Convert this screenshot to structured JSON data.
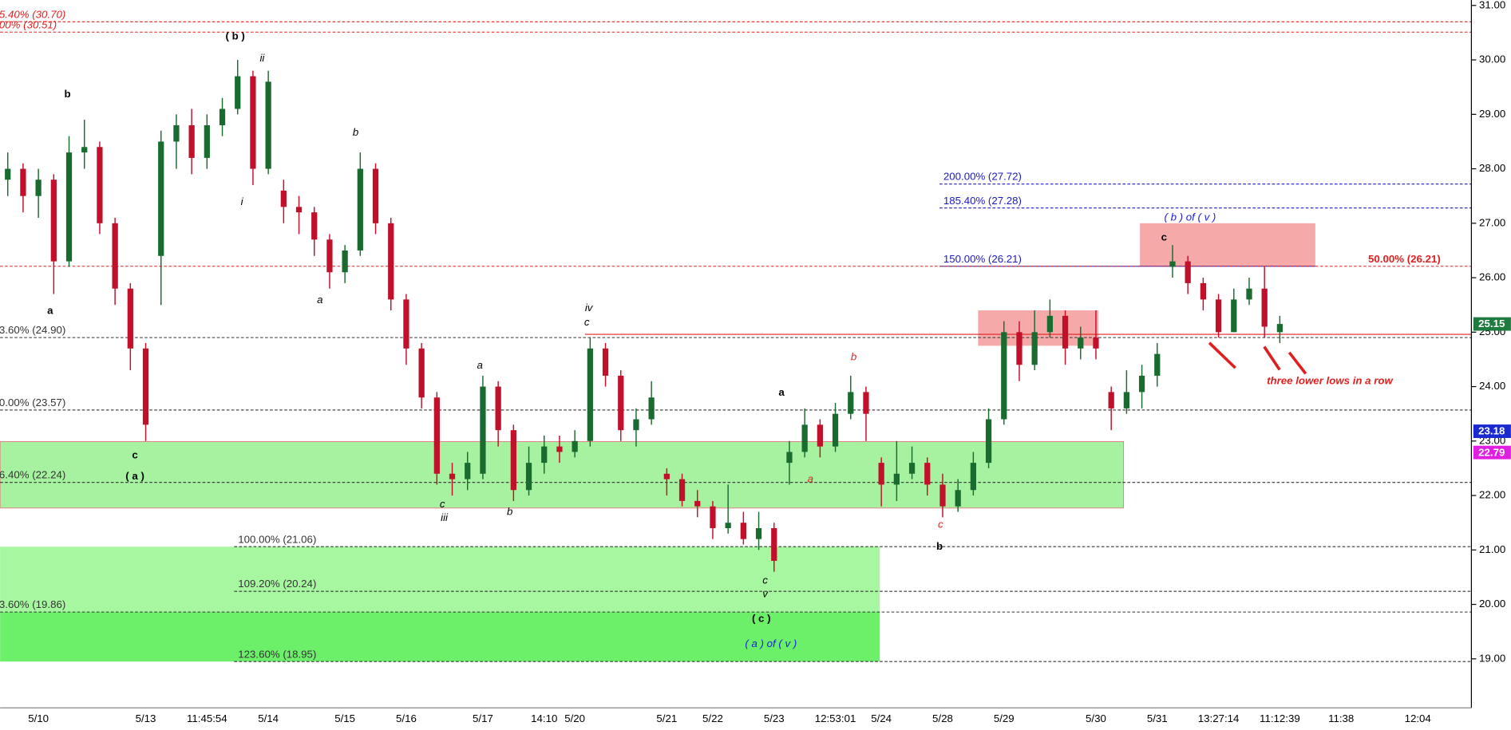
{
  "chart_data": {
    "type": "candlestick",
    "categories": [
      null,
      null,
      "5/10",
      null,
      null,
      null,
      null,
      null,
      null,
      "5/13",
      null,
      null,
      null,
      "11:45:54",
      null,
      null,
      null,
      "5/14",
      null,
      null,
      null,
      null,
      "5/15",
      null,
      null,
      null,
      "5/16",
      null,
      null,
      null,
      null,
      "5/17",
      null,
      null,
      null,
      "14:10",
      null,
      "5/20",
      null,
      null,
      null,
      null,
      null,
      "5/21",
      null,
      null,
      "5/22",
      null,
      null,
      null,
      "5/23",
      null,
      null,
      null,
      "12:53:01",
      null,
      null,
      "5/24",
      null,
      null,
      null,
      "5/28",
      null,
      null,
      null,
      "5/29",
      null,
      null,
      null,
      null,
      null,
      "5/30",
      null,
      null,
      null,
      "5/31",
      null,
      null,
      null,
      "13:27:14",
      null,
      null,
      null,
      "11:12:39",
      null,
      null,
      null,
      "11:38",
      null,
      null,
      null,
      null,
      "12:04",
      null,
      null,
      null
    ],
    "candles": [
      [
        27.8,
        28.3,
        27.5,
        28.0
      ],
      [
        28.0,
        28.1,
        27.2,
        27.5
      ],
      [
        27.5,
        28.0,
        27.1,
        27.8
      ],
      [
        27.8,
        27.9,
        25.7,
        26.3
      ],
      [
        26.3,
        28.6,
        26.2,
        28.3
      ],
      [
        28.3,
        28.9,
        28.0,
        28.4
      ],
      [
        28.4,
        28.5,
        26.8,
        27.0
      ],
      [
        27.0,
        27.1,
        25.5,
        25.8
      ],
      [
        25.8,
        25.9,
        24.3,
        24.7
      ],
      [
        24.7,
        24.8,
        23.0,
        23.3
      ],
      [
        26.4,
        28.7,
        25.5,
        28.5
      ],
      [
        28.5,
        29.0,
        28.0,
        28.8
      ],
      [
        28.8,
        29.1,
        27.9,
        28.2
      ],
      [
        28.2,
        29.0,
        28.0,
        28.8
      ],
      [
        28.8,
        29.3,
        28.6,
        29.1
      ],
      [
        29.1,
        30.0,
        29.0,
        29.7
      ],
      [
        29.7,
        29.8,
        27.7,
        28.0
      ],
      [
        28.0,
        29.8,
        27.9,
        29.6
      ],
      [
        27.6,
        27.8,
        27.0,
        27.3
      ],
      [
        27.3,
        27.5,
        26.8,
        27.2
      ],
      [
        27.2,
        27.3,
        26.4,
        26.7
      ],
      [
        26.7,
        26.8,
        25.8,
        26.1
      ],
      [
        26.1,
        26.6,
        25.9,
        26.5
      ],
      [
        26.5,
        28.3,
        26.4,
        28.0
      ],
      [
        28.0,
        28.1,
        26.8,
        27.0
      ],
      [
        27.0,
        27.1,
        25.4,
        25.6
      ],
      [
        25.6,
        25.7,
        24.4,
        24.7
      ],
      [
        24.7,
        24.8,
        23.6,
        23.8
      ],
      [
        23.8,
        23.9,
        22.2,
        22.4
      ],
      [
        22.4,
        22.6,
        22.0,
        22.3
      ],
      [
        22.3,
        22.8,
        22.1,
        22.6
      ],
      [
        22.4,
        24.2,
        22.3,
        24.0
      ],
      [
        24.0,
        24.1,
        22.9,
        23.2
      ],
      [
        23.2,
        23.3,
        21.9,
        22.1
      ],
      [
        22.1,
        22.9,
        22.0,
        22.6
      ],
      [
        22.6,
        23.1,
        22.4,
        22.9
      ],
      [
        22.9,
        23.1,
        22.6,
        22.8
      ],
      [
        22.8,
        23.2,
        22.7,
        23.0
      ],
      [
        23.0,
        24.9,
        22.9,
        24.7
      ],
      [
        24.7,
        24.8,
        24.0,
        24.2
      ],
      [
        24.2,
        24.3,
        23.0,
        23.2
      ],
      [
        23.2,
        23.6,
        22.9,
        23.4
      ],
      [
        23.4,
        24.1,
        23.3,
        23.8
      ],
      [
        22.4,
        22.5,
        22.0,
        22.3
      ],
      [
        22.3,
        22.4,
        21.8,
        21.9
      ],
      [
        21.9,
        22.1,
        21.6,
        21.8
      ],
      [
        21.8,
        21.9,
        21.2,
        21.4
      ],
      [
        21.4,
        22.2,
        21.3,
        21.5
      ],
      [
        21.5,
        21.7,
        21.1,
        21.2
      ],
      [
        21.2,
        21.7,
        21.0,
        21.4
      ],
      [
        21.4,
        21.5,
        20.6,
        20.8
      ],
      [
        22.6,
        23.0,
        22.2,
        22.8
      ],
      [
        22.8,
        23.6,
        22.7,
        23.3
      ],
      [
        23.3,
        23.4,
        22.7,
        22.9
      ],
      [
        22.9,
        23.7,
        22.8,
        23.5
      ],
      [
        23.5,
        24.2,
        23.4,
        23.9
      ],
      [
        23.9,
        24.0,
        23.0,
        23.5
      ],
      [
        22.6,
        22.7,
        21.8,
        22.2
      ],
      [
        22.2,
        23.0,
        21.9,
        22.4
      ],
      [
        22.4,
        22.9,
        22.3,
        22.6
      ],
      [
        22.6,
        22.7,
        22.0,
        22.2
      ],
      [
        22.2,
        22.4,
        21.6,
        21.8
      ],
      [
        21.8,
        22.3,
        21.7,
        22.1
      ],
      [
        22.1,
        22.8,
        22.0,
        22.6
      ],
      [
        22.6,
        23.6,
        22.5,
        23.4
      ],
      [
        23.4,
        25.2,
        23.3,
        25.0
      ],
      [
        25.0,
        25.2,
        24.1,
        24.4
      ],
      [
        24.4,
        25.4,
        24.3,
        25.0
      ],
      [
        25.0,
        25.6,
        24.9,
        25.3
      ],
      [
        25.3,
        25.4,
        24.4,
        24.7
      ],
      [
        24.7,
        25.1,
        24.5,
        24.9
      ],
      [
        24.9,
        25.4,
        24.5,
        24.7
      ],
      [
        23.9,
        24.0,
        23.2,
        23.6
      ],
      [
        23.6,
        24.3,
        23.5,
        23.9
      ],
      [
        23.9,
        24.4,
        23.6,
        24.2
      ],
      [
        24.2,
        24.8,
        24.0,
        24.6
      ],
      [
        26.2,
        26.6,
        26.0,
        26.3
      ],
      [
        26.3,
        26.4,
        25.7,
        25.9
      ],
      [
        25.9,
        26.0,
        25.4,
        25.6
      ],
      [
        25.6,
        25.7,
        24.9,
        25.0
      ],
      [
        25.0,
        25.8,
        25.0,
        25.6
      ],
      [
        25.6,
        26.0,
        25.5,
        25.8
      ],
      [
        25.8,
        26.2,
        24.9,
        25.1
      ],
      [
        25.0,
        25.3,
        24.8,
        25.15
      ],
      null,
      null,
      null,
      null,
      null,
      null,
      null,
      null,
      null,
      null,
      null,
      null
    ],
    "up_color": "#1a6b30",
    "down_color": "#c0102a",
    "ylim": [
      18.1,
      31.1
    ],
    "yticks": [
      {
        "value": 19,
        "label": "19.00"
      },
      {
        "value": 20,
        "label": "20.00"
      },
      {
        "value": 21,
        "label": "21.00"
      },
      {
        "value": 22,
        "label": "22.00"
      },
      {
        "value": 23,
        "label": "23.00"
      },
      {
        "value": 24,
        "label": "24.00"
      },
      {
        "value": 25,
        "label": "25.00"
      },
      {
        "value": 26,
        "label": "26.00"
      },
      {
        "value": 27,
        "label": "27.00"
      },
      {
        "value": 28,
        "label": "28.00"
      },
      {
        "value": 29,
        "label": "29.00"
      },
      {
        "value": 30,
        "label": "30.00"
      },
      {
        "value": 31,
        "label": "31.00"
      }
    ],
    "zones": [
      {
        "top": 22.99,
        "bottom": 21.77,
        "color": "#a6f2a0"
      },
      {
        "top": 21.06,
        "bottom": 19.86,
        "color": "#a6f7a0"
      },
      {
        "top": 19.86,
        "bottom": 18.95,
        "color": "#6cf06a"
      },
      {
        "top": 25.4,
        "bottom": 24.75,
        "color": "#f5a9a9"
      },
      {
        "top": 27.0,
        "bottom": 26.21,
        "color": "#f5a9a9"
      }
    ],
    "levels": [
      {
        "label": "5.40% (30.70)",
        "value": 30.7,
        "color": "#e02020"
      },
      {
        "label": "00% (30.51)",
        "value": 30.51,
        "color": "#e02020"
      },
      {
        "label": "3.60% (24.90)",
        "value": 24.9,
        "color": "#333333"
      },
      {
        "label": "0.00% (23.57)",
        "value": 23.57,
        "color": "#333333"
      },
      {
        "label": "6.40% (22.24)",
        "value": 22.24,
        "color": "#333333"
      },
      {
        "label": "100.00% (21.06)",
        "value": 21.06,
        "color": "#333333"
      },
      {
        "label": "109.20% (20.24)",
        "value": 20.24,
        "color": "#333333"
      },
      {
        "label": "3.60% (19.86)",
        "value": 19.86,
        "color": "#333333"
      },
      {
        "label": "123.60% (18.95)",
        "value": 18.95,
        "color": "#333333"
      },
      {
        "label": "200.00% (27.72)",
        "value": 27.72,
        "color": "#1a1ac0"
      },
      {
        "label": "185.40% (27.28)",
        "value": 27.28,
        "color": "#1a1ac0"
      },
      {
        "label": "150.00% (26.21)",
        "value": 26.21,
        "color": "#1a1ac0"
      },
      {
        "label": "50.00% (26.21)",
        "value": 26.21,
        "color": "#e02020"
      },
      {
        "value": 24.96,
        "color": "#e02020"
      }
    ],
    "price_markers": [
      {
        "value": 25.15,
        "color": "#1e7a3e"
      },
      {
        "value": 23.18,
        "color": "#1a2ad0"
      },
      {
        "value": 22.79,
        "color": "#e020e0"
      }
    ],
    "annotations": [
      {
        "text": "( b )",
        "color": "#000000",
        "style": "bold"
      },
      {
        "text": "ii",
        "color": "#000000",
        "style": "italic"
      },
      {
        "text": "b",
        "color": "#000000",
        "style": "bold"
      },
      {
        "text": "b",
        "color": "#000000",
        "style": "italic"
      },
      {
        "text": "i",
        "color": "#000000",
        "style": "italic"
      },
      {
        "text": "a",
        "color": "#000000",
        "style": "bold"
      },
      {
        "text": "a",
        "color": "#000000",
        "style": "italic"
      },
      {
        "text": "c",
        "color": "#000000",
        "style": "bold"
      },
      {
        "text": "( a )",
        "color": "#000000",
        "style": "bold"
      },
      {
        "text": "iv",
        "color": "#000000",
        "style": "italic"
      },
      {
        "text": "c",
        "color": "#000000",
        "style": "italic"
      },
      {
        "text": "a",
        "color": "#000000",
        "style": "italic"
      },
      {
        "text": "c",
        "color": "#000000",
        "style": "italic"
      },
      {
        "text": "iii",
        "color": "#000000",
        "style": "italic"
      },
      {
        "text": "b",
        "color": "#000000",
        "style": "italic"
      },
      {
        "text": "a",
        "color": "#000000",
        "style": "bold"
      },
      {
        "text": "b",
        "color": "#e02020",
        "style": "italic"
      },
      {
        "text": "a",
        "color": "#e02020",
        "style": "italic"
      },
      {
        "text": "c",
        "color": "#e02020",
        "style": "italic"
      },
      {
        "text": "b",
        "color": "#000000",
        "style": "bold"
      },
      {
        "text": "c",
        "color": "#000000",
        "style": "italic"
      },
      {
        "text": "v",
        "color": "#000000",
        "style": "italic"
      },
      {
        "text": "( c )",
        "color": "#000000",
        "style": "bold"
      },
      {
        "text": "( a ) of ( v )",
        "color": "#1a1ae0",
        "style": "big"
      },
      {
        "text": "( b ) of ( v )",
        "color": "#1a1ae0",
        "style": "big"
      },
      {
        "text": "c",
        "color": "#000000",
        "style": "bold"
      },
      {
        "text": "three lower lows in a row",
        "color": "#e02020",
        "style": "big-bold"
      }
    ]
  }
}
